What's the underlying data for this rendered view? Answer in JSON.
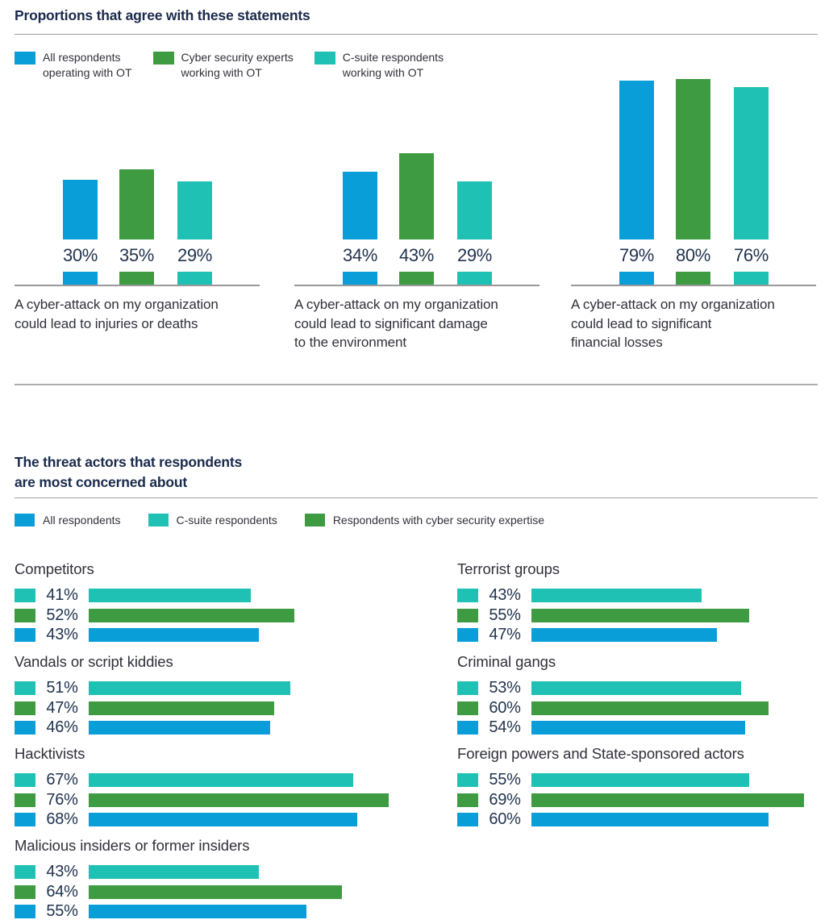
{
  "colors": {
    "blue": "#0A9ED9",
    "green": "#3F9B42",
    "teal": "#1FC1B5",
    "navy": "#1A2A4C",
    "text_dark": "#30313A",
    "pct_navy": "#22344F",
    "rule_gray": "#9C9FA3",
    "divider_gray": "#ADADAF",
    "baseline_gray": "#98999B"
  },
  "section1": {
    "title": "Proportions that agree with these statements",
    "legend": [
      {
        "color": "blue",
        "lines": [
          "All respondents",
          "operating with OT"
        ]
      },
      {
        "color": "green",
        "lines": [
          "Cyber security experts",
          "working with OT"
        ]
      },
      {
        "color": "teal",
        "lines": [
          "C-suite respondents",
          "working with OT"
        ]
      }
    ],
    "groups": [
      {
        "caption_lines": [
          "A cyber-attack on my organization",
          "could lead to injuries or deaths"
        ],
        "bars": [
          {
            "color": "blue",
            "pct": 30,
            "label": "30%"
          },
          {
            "color": "green",
            "pct": 35,
            "label": "35%"
          },
          {
            "color": "teal",
            "pct": 29,
            "label": "29%"
          }
        ]
      },
      {
        "caption_lines": [
          "A cyber-attack on my organization",
          "could lead to significant damage",
          "to the environment"
        ],
        "bars": [
          {
            "color": "blue",
            "pct": 34,
            "label": "34%"
          },
          {
            "color": "green",
            "pct": 43,
            "label": "43%"
          },
          {
            "color": "teal",
            "pct": 29,
            "label": "29%"
          }
        ]
      },
      {
        "caption_lines": [
          "A cyber-attack on my organization",
          "could lead to significant",
          "financial losses"
        ],
        "bars": [
          {
            "color": "blue",
            "pct": 79,
            "label": "79%"
          },
          {
            "color": "green",
            "pct": 80,
            "label": "80%"
          },
          {
            "color": "teal",
            "pct": 76,
            "label": "76%"
          }
        ]
      }
    ]
  },
  "section2": {
    "title_lines": [
      "The threat actors that respondents",
      "are most concerned about"
    ],
    "legend": [
      {
        "color": "blue",
        "label": "All respondents"
      },
      {
        "color": "teal",
        "label": "C-suite respondents"
      },
      {
        "color": "green",
        "label": "Respondents with cyber security expertise"
      }
    ],
    "groups": [
      {
        "title": "Competitors",
        "rows": [
          {
            "color": "teal",
            "pct": 41,
            "label": "41%"
          },
          {
            "color": "green",
            "pct": 52,
            "label": "52%"
          },
          {
            "color": "blue",
            "pct": 43,
            "label": "43%"
          }
        ]
      },
      {
        "title": "Terrorist groups",
        "rows": [
          {
            "color": "teal",
            "pct": 43,
            "label": "43%"
          },
          {
            "color": "green",
            "pct": 55,
            "label": "55%"
          },
          {
            "color": "blue",
            "pct": 47,
            "label": "47%"
          }
        ]
      },
      {
        "title": "Vandals or script kiddies",
        "rows": [
          {
            "color": "teal",
            "pct": 51,
            "label": "51%"
          },
          {
            "color": "green",
            "pct": 47,
            "label": "47%"
          },
          {
            "color": "blue",
            "pct": 46,
            "label": "46%"
          }
        ]
      },
      {
        "title": "Criminal gangs",
        "rows": [
          {
            "color": "teal",
            "pct": 53,
            "label": "53%"
          },
          {
            "color": "green",
            "pct": 60,
            "label": "60%"
          },
          {
            "color": "blue",
            "pct": 54,
            "label": "54%"
          }
        ]
      },
      {
        "title": "Hacktivists",
        "rows": [
          {
            "color": "teal",
            "pct": 67,
            "label": "67%"
          },
          {
            "color": "green",
            "pct": 76,
            "label": "76%"
          },
          {
            "color": "blue",
            "pct": 68,
            "label": "68%"
          }
        ]
      },
      {
        "title": "Foreign powers and State-sponsored actors",
        "rows": [
          {
            "color": "teal",
            "pct": 55,
            "label": "55%"
          },
          {
            "color": "green",
            "pct": 69,
            "label": "69%"
          },
          {
            "color": "blue",
            "pct": 60,
            "label": "60%"
          }
        ]
      },
      {
        "title": "Malicious insiders or former insiders",
        "rows": [
          {
            "color": "teal",
            "pct": 43,
            "label": "43%"
          },
          {
            "color": "green",
            "pct": 64,
            "label": "64%"
          },
          {
            "color": "blue",
            "pct": 55,
            "label": "55%"
          }
        ]
      }
    ]
  },
  "chart_data": [
    {
      "type": "bar",
      "orientation": "vertical",
      "title": "Proportions that agree with these statements",
      "categories": [
        "A cyber-attack on my organization could lead to injuries or deaths",
        "A cyber-attack on my organization could lead to significant damage to the environment",
        "A cyber-attack on my organization could lead to significant financial losses"
      ],
      "series": [
        {
          "name": "All respondents operating with OT",
          "color": "#0A9ED9",
          "values": [
            30,
            34,
            79
          ]
        },
        {
          "name": "Cyber security experts working with OT",
          "color": "#3F9B42",
          "values": [
            35,
            43,
            80
          ]
        },
        {
          "name": "C-suite respondents working with OT",
          "color": "#1FC1B5",
          "values": [
            29,
            29,
            76
          ]
        }
      ],
      "value_suffix": "%",
      "ylim": [
        0,
        100
      ],
      "grid": false,
      "data_labels": true,
      "legend_position": "top-left"
    },
    {
      "type": "bar",
      "orientation": "horizontal",
      "title": "The threat actors that respondents are most concerned about",
      "categories": [
        "Competitors",
        "Terrorist groups",
        "Vandals or script kiddies",
        "Criminal gangs",
        "Hacktivists",
        "Foreign powers and State-sponsored actors",
        "Malicious insiders or former insiders"
      ],
      "series": [
        {
          "name": "C-suite respondents",
          "color": "#1FC1B5",
          "values": [
            41,
            43,
            51,
            53,
            67,
            55,
            43
          ]
        },
        {
          "name": "Respondents with cyber security expertise",
          "color": "#3F9B42",
          "values": [
            52,
            55,
            47,
            60,
            76,
            69,
            64
          ]
        },
        {
          "name": "All respondents",
          "color": "#0A9ED9",
          "values": [
            43,
            47,
            46,
            54,
            68,
            60,
            55
          ]
        }
      ],
      "value_suffix": "%",
      "xlim": [
        0,
        100
      ],
      "grid": false,
      "data_labels": true,
      "legend_position": "top-left",
      "layout": "two-column"
    }
  ]
}
